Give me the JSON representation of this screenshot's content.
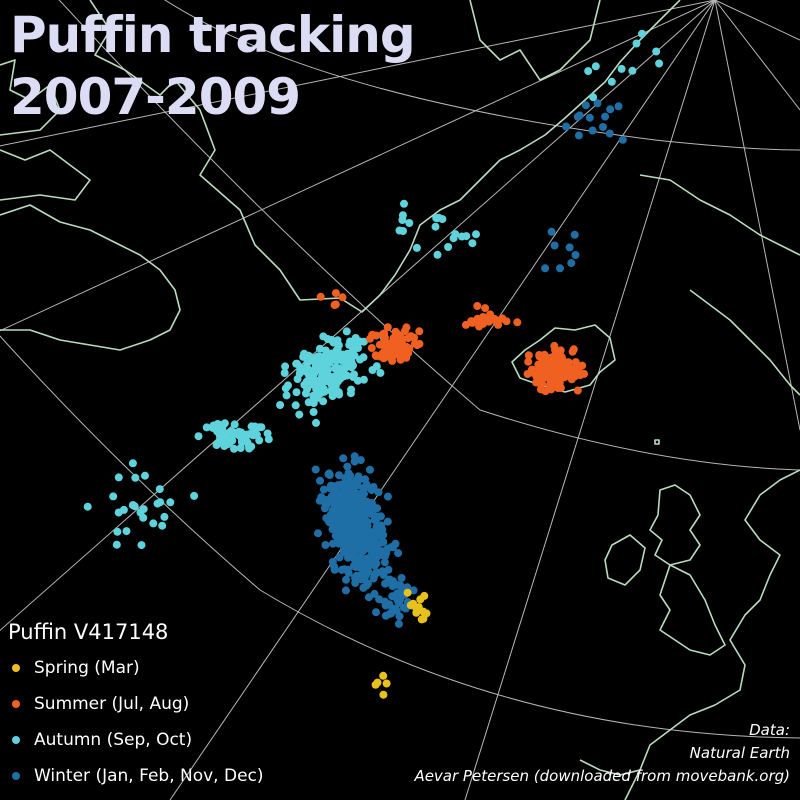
{
  "title": {
    "line1": "Puffin tracking",
    "line2": "2007-2009"
  },
  "legend": {
    "title": "Puffin V417148",
    "items": [
      {
        "key": "spring",
        "label": "Spring (Mar)",
        "color": "#e8c21a"
      },
      {
        "key": "summer",
        "label": "Summer (Jul, Aug)",
        "color": "#f06020"
      },
      {
        "key": "autumn",
        "label": "Autumn (Sep, Oct)",
        "color": "#5fd3dc"
      },
      {
        "key": "winter",
        "label": "Winter (Jan, Feb, Nov, Dec)",
        "color": "#1f6fa6"
      }
    ]
  },
  "credits": {
    "line1": "Data:",
    "line2": "Natural Earth",
    "line3": "Aevar Petersen (downloaded from movebank.org)"
  },
  "colors": {
    "background": "#000000",
    "coastline": "#b9dcc0",
    "graticule": "#d8d8d8",
    "title": "#dcdcf4"
  }
}
